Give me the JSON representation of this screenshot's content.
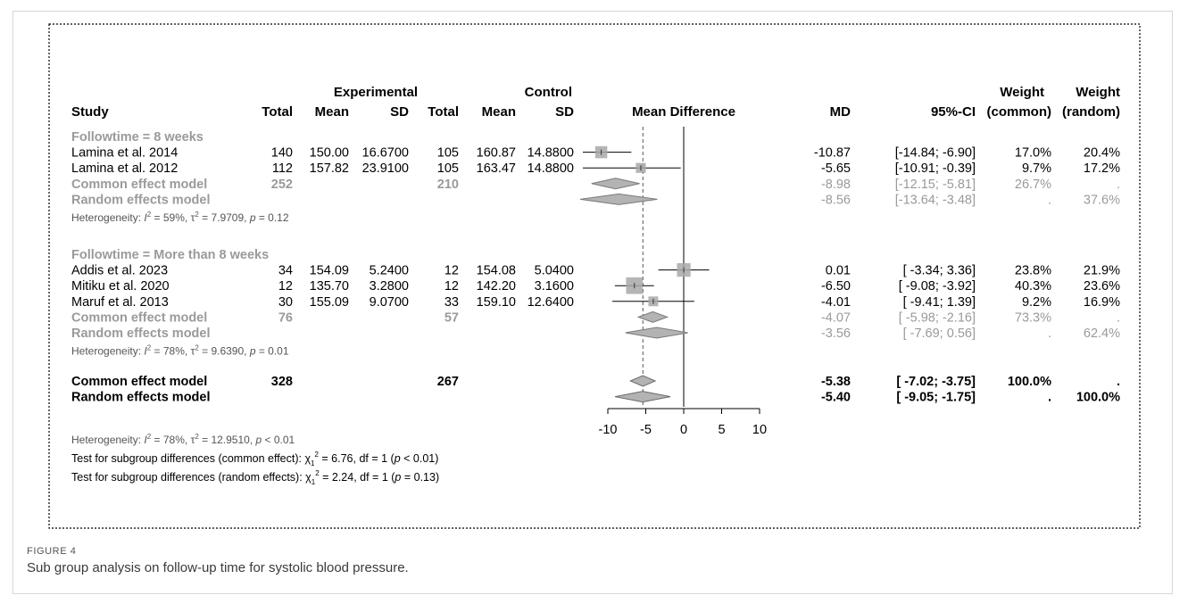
{
  "chart_data": {
    "type": "forest",
    "headers": {
      "study": "Study",
      "experimental_group": "Experimental",
      "control_group": "Control",
      "total": "Total",
      "mean": "Mean",
      "sd": "SD",
      "effect": "Mean Difference",
      "md": "MD",
      "ci": "95%-CI",
      "weight": "Weight",
      "weight_common": "(common)",
      "weight_random": "(random)"
    },
    "subgroups": [
      {
        "label": "Followtime = 8 weeks",
        "studies": [
          {
            "study": "Lamina et al. 2014",
            "exp_total": "140",
            "exp_mean": "150.00",
            "exp_sd": "16.6700",
            "ctl_total": "105",
            "ctl_mean": "160.87",
            "ctl_sd": "14.8800",
            "md_text": "-10.87",
            "ci_text": "[-14.84; -6.90]",
            "w_common": "17.0%",
            "w_random": "20.4%",
            "md": -10.87,
            "lo": -14.84,
            "hi": -6.9
          },
          {
            "study": "Lamina et al. 2012",
            "exp_total": "112",
            "exp_mean": "157.82",
            "exp_sd": "23.9100",
            "ctl_total": "105",
            "ctl_mean": "163.47",
            "ctl_sd": "14.8800",
            "md_text": "-5.65",
            "ci_text": "[-10.91; -0.39]",
            "w_common": "9.7%",
            "w_random": "17.2%",
            "md": -5.65,
            "lo": -10.91,
            "hi": -0.39
          }
        ],
        "common": {
          "label": "Common effect model",
          "exp_total": "252",
          "ctl_total": "210",
          "md_text": "-8.98",
          "ci_text": "[-12.15; -5.81]",
          "w_common": "26.7%",
          "w_random": ".",
          "md": -8.98,
          "lo": -12.15,
          "hi": -5.81
        },
        "random": {
          "label": "Random effects model",
          "md_text": "-8.56",
          "ci_text": "[-13.64; -3.48]",
          "w_common": ".",
          "w_random": "37.6%",
          "md": -8.56,
          "lo": -13.64,
          "hi": -3.48
        },
        "heterogeneity": {
          "i2_prefix": "Heterogeneity: ",
          "i2_letter": "I",
          "i2_value": " = 59%, ",
          "tau": "τ",
          "tau_value": " = 7.9709, ",
          "p_letter": "p",
          "p_value": " = 0.12"
        }
      },
      {
        "label": "Followtime = More than 8 weeks",
        "studies": [
          {
            "study": "Addis et al. 2023",
            "exp_total": "34",
            "exp_mean": "154.09",
            "exp_sd": "5.2400",
            "ctl_total": "12",
            "ctl_mean": "154.08",
            "ctl_sd": "5.0400",
            "md_text": "0.01",
            "ci_text": "[ -3.34;  3.36]",
            "w_common": "23.8%",
            "w_random": "21.9%",
            "md": 0.01,
            "lo": -3.34,
            "hi": 3.36
          },
          {
            "study": "Mitiku et al. 2020",
            "exp_total": "12",
            "exp_mean": "135.70",
            "exp_sd": "3.2800",
            "ctl_total": "12",
            "ctl_mean": "142.20",
            "ctl_sd": "3.1600",
            "md_text": "-6.50",
            "ci_text": "[ -9.08; -3.92]",
            "w_common": "40.3%",
            "w_random": "23.6%",
            "md": -6.5,
            "lo": -9.08,
            "hi": -3.92
          },
          {
            "study": "Maruf et al. 2013",
            "exp_total": "30",
            "exp_mean": "155.09",
            "exp_sd": "9.0700",
            "ctl_total": "33",
            "ctl_mean": "159.10",
            "ctl_sd": "12.6400",
            "md_text": "-4.01",
            "ci_text": "[ -9.41;  1.39]",
            "w_common": "9.2%",
            "w_random": "16.9%",
            "md": -4.01,
            "lo": -9.41,
            "hi": 1.39
          }
        ],
        "common": {
          "label": "Common effect model",
          "exp_total": "76",
          "ctl_total": "57",
          "md_text": "-4.07",
          "ci_text": "[ -5.98; -2.16]",
          "w_common": "73.3%",
          "w_random": ".",
          "md": -4.07,
          "lo": -5.98,
          "hi": -2.16
        },
        "random": {
          "label": "Random effects model",
          "md_text": "-3.56",
          "ci_text": "[ -7.69;  0.56]",
          "w_common": ".",
          "w_random": "62.4%",
          "md": -3.56,
          "lo": -7.69,
          "hi": 0.56
        },
        "heterogeneity": {
          "i2_prefix": "Heterogeneity: ",
          "i2_letter": "I",
          "i2_value": " = 78%, ",
          "tau": "τ",
          "tau_value": " = 9.6390, ",
          "p_letter": "p",
          "p_value": " = 0.01"
        }
      }
    ],
    "overall": {
      "common": {
        "label": "Common effect model",
        "exp_total": "328",
        "ctl_total": "267",
        "md_text": "-5.38",
        "ci_text": "[ -7.02; -3.75]",
        "w_common": "100.0%",
        "w_random": ".",
        "md": -5.38,
        "lo": -7.02,
        "hi": -3.75
      },
      "random": {
        "label": "Random effects model",
        "md_text": "-5.40",
        "ci_text": "[ -9.05; -1.75]",
        "w_common": ".",
        "w_random": "100.0%",
        "md": -5.4,
        "lo": -9.05,
        "hi": -1.75
      },
      "heterogeneity": {
        "i2_prefix": "Heterogeneity: ",
        "i2_letter": "I",
        "i2_value": " = 78%, ",
        "tau": "τ",
        "tau_value": " = 12.9510, ",
        "p_letter": "p",
        "p_value": " < 0.01"
      },
      "test_common": {
        "prefix": "Test for subgroup differences (common effect): ",
        "chi": "χ",
        "sub": "1",
        "sup": "2",
        "mid": " = 6.76, df = 1 (",
        "p_letter": "p",
        "suffix": " < 0.01)"
      },
      "test_random": {
        "prefix": "Test for subgroup differences (random effects): ",
        "chi": "χ",
        "sub": "1",
        "sup": "2",
        "mid": " = 2.24, df = 1 (",
        "p_letter": "p",
        "suffix": " = 0.13)"
      }
    },
    "xaxis": {
      "ticks": [
        -10,
        -5,
        0,
        5,
        10
      ],
      "xlim": [
        -10,
        10
      ],
      "null_value": 0,
      "reference_line": -5.38
    }
  },
  "caption": {
    "label": "FIGURE 4",
    "text": "Sub group analysis on follow-up time for systolic blood pressure."
  }
}
